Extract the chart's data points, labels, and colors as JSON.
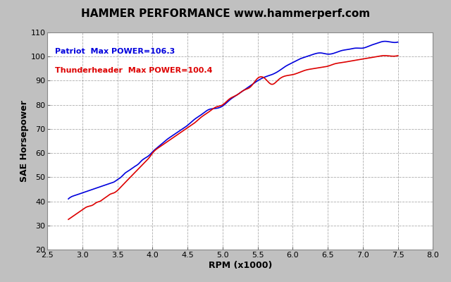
{
  "title": "HAMMER PERFORMANCE www.hammerperf.com",
  "xlabel": "RPM (x1000)",
  "ylabel": "SAE Horsepower",
  "xlim": [
    2.5,
    8.0
  ],
  "ylim": [
    20,
    110
  ],
  "xticks": [
    2.5,
    3.0,
    3.5,
    4.0,
    4.5,
    5.0,
    5.5,
    6.0,
    6.5,
    7.0,
    7.5,
    8.0
  ],
  "yticks": [
    20,
    30,
    40,
    50,
    60,
    70,
    80,
    90,
    100,
    110
  ],
  "background_color": "#c0c0c0",
  "plot_bg_color": "#ffffff",
  "grid_color": "#888888",
  "patriot_color": "#0000dd",
  "thunder_color": "#dd0000",
  "patriot_label": "Patriot  Max POWER=106.3",
  "thunder_label": "Thunderheader  Max POWER=100.4",
  "patriot_x": [
    2.8,
    2.85,
    2.9,
    2.95,
    3.0,
    3.05,
    3.1,
    3.15,
    3.2,
    3.25,
    3.3,
    3.35,
    3.4,
    3.45,
    3.5,
    3.55,
    3.6,
    3.65,
    3.7,
    3.75,
    3.8,
    3.85,
    3.9,
    3.95,
    4.0,
    4.1,
    4.2,
    4.3,
    4.4,
    4.5,
    4.6,
    4.7,
    4.8,
    4.9,
    5.0,
    5.1,
    5.2,
    5.3,
    5.4,
    5.5,
    5.6,
    5.7,
    5.8,
    5.9,
    6.0,
    6.1,
    6.2,
    6.3,
    6.4,
    6.5,
    6.6,
    6.7,
    6.8,
    6.9,
    7.0,
    7.1,
    7.2,
    7.3,
    7.4,
    7.5
  ],
  "patriot_y": [
    41.0,
    42.0,
    42.5,
    43.0,
    43.5,
    44.0,
    44.5,
    45.0,
    45.5,
    46.0,
    46.5,
    47.0,
    47.5,
    48.0,
    49.0,
    50.0,
    51.5,
    52.5,
    53.5,
    54.5,
    55.5,
    57.0,
    58.0,
    59.0,
    60.5,
    63.0,
    65.5,
    67.5,
    69.5,
    71.5,
    74.0,
    76.0,
    78.0,
    78.5,
    79.5,
    82.0,
    84.0,
    86.0,
    88.0,
    90.0,
    91.5,
    92.5,
    94.0,
    96.0,
    97.5,
    99.0,
    100.0,
    101.0,
    101.5,
    101.0,
    101.5,
    102.5,
    103.0,
    103.5,
    103.5,
    104.5,
    105.5,
    106.3,
    106.0,
    106.0
  ],
  "thunder_x": [
    2.8,
    2.85,
    2.9,
    2.95,
    3.0,
    3.05,
    3.1,
    3.15,
    3.2,
    3.25,
    3.3,
    3.35,
    3.4,
    3.45,
    3.5,
    3.55,
    3.6,
    3.65,
    3.7,
    3.75,
    3.8,
    3.85,
    3.9,
    3.95,
    4.0,
    4.1,
    4.2,
    4.3,
    4.4,
    4.5,
    4.6,
    4.7,
    4.8,
    4.9,
    5.0,
    5.1,
    5.2,
    5.3,
    5.4,
    5.5,
    5.6,
    5.7,
    5.8,
    5.9,
    6.0,
    6.1,
    6.2,
    6.3,
    6.4,
    6.5,
    6.6,
    6.7,
    6.8,
    6.9,
    7.0,
    7.1,
    7.2,
    7.3,
    7.4,
    7.5
  ],
  "thunder_y": [
    32.5,
    33.5,
    34.5,
    35.5,
    36.5,
    37.5,
    38.0,
    38.5,
    39.5,
    40.0,
    41.0,
    42.0,
    43.0,
    43.5,
    44.5,
    46.0,
    47.5,
    49.0,
    50.5,
    52.0,
    53.5,
    55.0,
    56.5,
    58.0,
    60.0,
    62.5,
    64.5,
    66.5,
    68.5,
    70.5,
    72.5,
    75.0,
    77.0,
    79.0,
    80.0,
    82.5,
    84.0,
    86.0,
    87.5,
    91.0,
    91.0,
    88.5,
    90.5,
    92.0,
    92.5,
    93.5,
    94.5,
    95.0,
    95.5,
    96.0,
    97.0,
    97.5,
    98.0,
    98.5,
    99.0,
    99.5,
    100.0,
    100.4,
    100.2,
    100.4
  ]
}
